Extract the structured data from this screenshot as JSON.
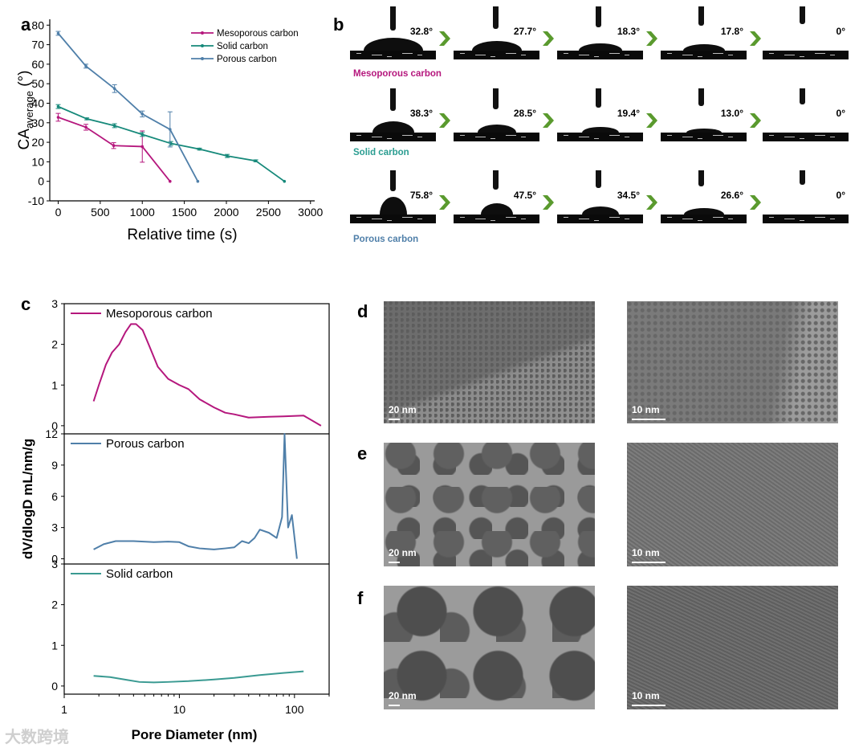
{
  "panels": {
    "a": "a",
    "b": "b",
    "c": "c",
    "d": "d",
    "e": "e",
    "f": "f"
  },
  "chart_a": {
    "type": "line",
    "xlabel": "Relative time (s)",
    "ylabel_main": "CA",
    "ylabel_sub": "average",
    "ylabel_unit": " (°)",
    "xticks": [
      "0",
      "500",
      "1000",
      "1500",
      "2000",
      "2500",
      "3000"
    ],
    "yticks": [
      "-10",
      "0",
      "10",
      "20",
      "30",
      "40",
      "50",
      "60",
      "70",
      "80"
    ],
    "xlim": [
      -100,
      3050
    ],
    "ylim": [
      -10,
      83
    ],
    "series": [
      {
        "name": "Mesoporous carbon",
        "color": "#b5177d",
        "x": [
          0,
          330,
          660,
          1000,
          1330
        ],
        "y": [
          32.8,
          27.7,
          18.3,
          17.8,
          0
        ],
        "err": [
          2,
          1.5,
          1.5,
          8,
          0
        ]
      },
      {
        "name": "Solid carbon",
        "color": "#16897a",
        "x": [
          0,
          340,
          670,
          1000,
          1340,
          1680,
          2010,
          2350,
          2690
        ],
        "y": [
          38.3,
          32,
          28.5,
          24,
          19.4,
          16.5,
          13,
          10.5,
          0
        ],
        "err": [
          1,
          0.5,
          1,
          1,
          1,
          0.5,
          0.8,
          0.5,
          0
        ]
      },
      {
        "name": "Porous carbon",
        "color": "#4f7fa9",
        "x": [
          0,
          330,
          670,
          1000,
          1330,
          1660
        ],
        "y": [
          75.8,
          59,
          47.5,
          34.5,
          26.6,
          0
        ],
        "err": [
          1,
          1,
          2,
          1.5,
          9,
          0
        ]
      }
    ]
  },
  "panel_b": {
    "rows": [
      {
        "label": "Mesoporous carbon",
        "color": "#b5177d",
        "angles": [
          "32.8°",
          "27.7°",
          "18.3°",
          "17.8°",
          "0°"
        ],
        "drop_w": [
          74,
          62,
          54,
          52,
          0
        ],
        "drop_h": [
          16,
          12,
          9,
          8,
          0
        ]
      },
      {
        "label": "Solid carbon",
        "color": "#2a9d91",
        "angles": [
          "38.3°",
          "28.5°",
          "19.4°",
          "13.0°",
          "0°"
        ],
        "drop_w": [
          52,
          48,
          46,
          44,
          0
        ],
        "drop_h": [
          14,
          10,
          7,
          5,
          0
        ]
      },
      {
        "label": "Porous carbon",
        "color": "#4f7fa9",
        "angles": [
          "75.8°",
          "47.5°",
          "34.5°",
          "26.6°",
          "0°"
        ],
        "drop_w": [
          34,
          40,
          46,
          50,
          0
        ],
        "drop_h": [
          22,
          14,
          10,
          8,
          0
        ]
      }
    ]
  },
  "chart_c": {
    "type": "line",
    "xlabel": "Pore Diameter (nm)",
    "ylabel": "dV/dlogD mL/nm/g",
    "xticks": [
      "1",
      "10",
      "100"
    ],
    "xlim": [
      1,
      200
    ],
    "subplots": [
      {
        "name": "Mesoporous carbon",
        "color": "#b5177d",
        "yticks": [
          "0",
          "1",
          "2",
          "3"
        ],
        "ylim": [
          -0.2,
          3
        ],
        "x": [
          1.8,
          2.0,
          2.3,
          2.6,
          3.0,
          3.4,
          3.8,
          4.2,
          4.8,
          5.5,
          6.5,
          8,
          10,
          12,
          15,
          20,
          25,
          30,
          40,
          60,
          80,
          120,
          170
        ],
        "y": [
          0.6,
          1.0,
          1.5,
          1.8,
          2.0,
          2.3,
          2.5,
          2.5,
          2.35,
          1.95,
          1.45,
          1.15,
          1.0,
          0.9,
          0.65,
          0.45,
          0.32,
          0.28,
          0.2,
          0.22,
          0.23,
          0.25,
          0.0
        ]
      },
      {
        "name": "Porous carbon",
        "color": "#4f7fa9",
        "yticks": [
          "0",
          "3",
          "6",
          "9",
          "12"
        ],
        "ylim": [
          -0.5,
          12
        ],
        "x": [
          1.8,
          2.2,
          2.8,
          4,
          6,
          8,
          10,
          12,
          15,
          20,
          25,
          30,
          35,
          40,
          45,
          50,
          60,
          70,
          78,
          82,
          88,
          95,
          105
        ],
        "y": [
          0.9,
          1.4,
          1.7,
          1.7,
          1.6,
          1.65,
          1.6,
          1.2,
          1.0,
          0.9,
          1.0,
          1.1,
          1.7,
          1.5,
          2.0,
          2.8,
          2.5,
          2.0,
          4.0,
          12.0,
          3.0,
          4.2,
          0.0
        ]
      },
      {
        "name": "Solid carbon",
        "color": "#3a9a92",
        "yticks": [
          "0",
          "1",
          "2",
          "3"
        ],
        "ylim": [
          -0.2,
          3
        ],
        "x": [
          1.8,
          2.5,
          3.5,
          4.5,
          6,
          8,
          12,
          20,
          30,
          50,
          80,
          120
        ],
        "y": [
          0.25,
          0.22,
          0.15,
          0.1,
          0.09,
          0.1,
          0.12,
          0.16,
          0.2,
          0.27,
          0.32,
          0.36
        ]
      }
    ]
  },
  "tem": {
    "rows": [
      {
        "left_scale": "20 nm",
        "right_scale": "10 nm"
      },
      {
        "left_scale": "20 nm",
        "right_scale": "10 nm"
      },
      {
        "left_scale": "20 nm",
        "right_scale": "10 nm"
      }
    ]
  },
  "watermark": "大数跨境"
}
